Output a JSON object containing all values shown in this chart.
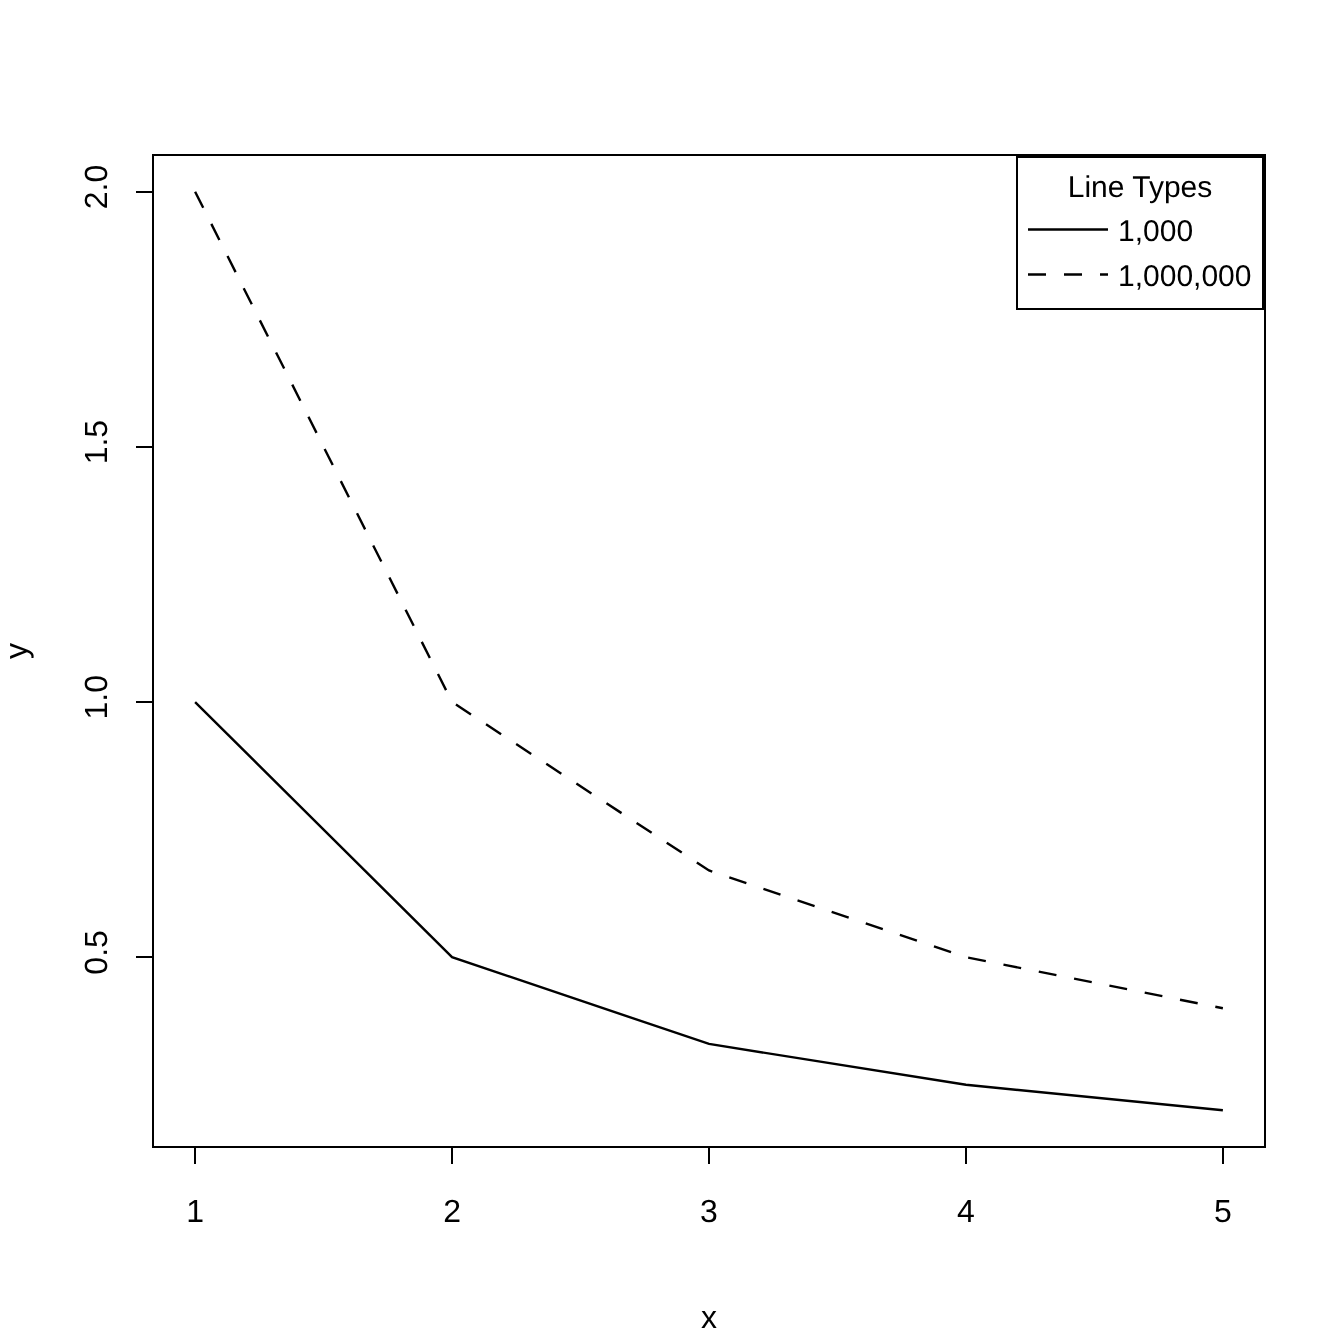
{
  "chart_data": {
    "type": "line",
    "xlabel": "x",
    "ylabel": "y",
    "legend_title": "Line Types",
    "legend": "top right",
    "x": [
      1,
      2,
      3,
      4,
      5
    ],
    "series": [
      {
        "name": "1,000",
        "color": "#000000",
        "line_style": "solid",
        "values": [
          1,
          0.5,
          0.33,
          0.25,
          0.2
        ]
      },
      {
        "name": "1,000,000",
        "color": "#000000",
        "line_style": "dashed",
        "values": [
          2,
          1,
          0.67,
          0.5,
          0.4
        ]
      }
    ],
    "xlim": [
      0.84,
      5.16
    ],
    "ylim": [
      0.13,
      2.07
    ],
    "xticks": [
      1,
      2,
      3,
      4,
      5
    ],
    "yticks": [
      0.5,
      {
        "value": 1,
        "label": "1.0"
      },
      1.5,
      {
        "value": 2,
        "label": "2.0"
      }
    ]
  }
}
